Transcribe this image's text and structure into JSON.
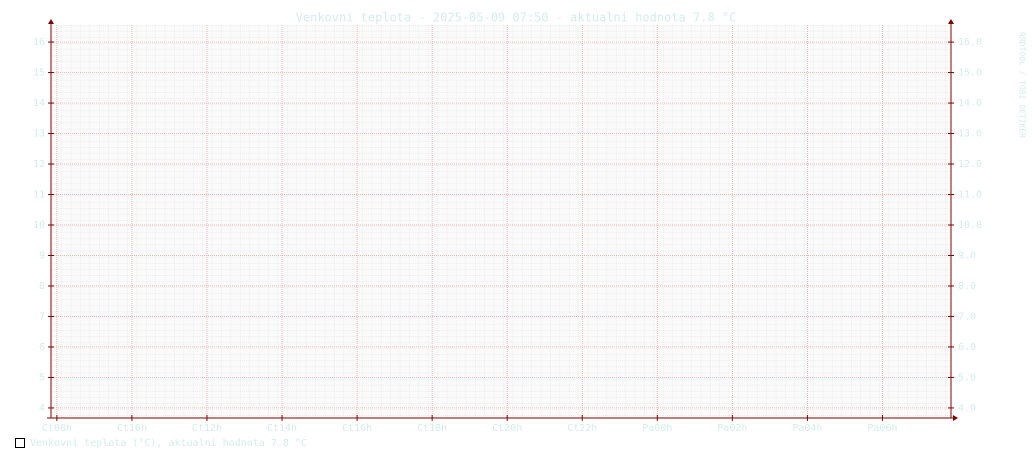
{
  "chart_data": {
    "type": "line",
    "title": "Venkovni teplota - 2025-05-09 07:50 - aktualni hodnota 7.8 °C",
    "watermark": "RRDTOOL / TOBI OETIKER",
    "x": [],
    "series": [
      {
        "name": "Venkovni teplota (°C), aktualni hodnota 7.8 °C",
        "color": "#000000",
        "values": []
      }
    ],
    "xlim": [
      7.87,
      31.8
    ],
    "xticks": [
      {
        "value": 8,
        "label": "Ct08h"
      },
      {
        "value": 10,
        "label": "Ct10h"
      },
      {
        "value": 12,
        "label": "Ct12h"
      },
      {
        "value": 14,
        "label": "Ct14h"
      },
      {
        "value": 16,
        "label": "Ct16h"
      },
      {
        "value": 18,
        "label": "Ct18h"
      },
      {
        "value": 20,
        "label": "Ct20h"
      },
      {
        "value": 22,
        "label": "Ct22h"
      },
      {
        "value": 24,
        "label": "Pa00h"
      },
      {
        "value": 26,
        "label": "Pa02h"
      },
      {
        "value": 28,
        "label": "Pa04h"
      },
      {
        "value": 30,
        "label": "Pa06h"
      }
    ],
    "ylim": [
      3.67,
      16.56
    ],
    "yticks": [
      4,
      5,
      6,
      7,
      8,
      9,
      10,
      11,
      12,
      13,
      14,
      15,
      16
    ],
    "y2lim": [
      3.67,
      16.56
    ],
    "y2ticks": [
      {
        "value": 4,
        "label": "4.0"
      },
      {
        "value": 5,
        "label": "5.0"
      },
      {
        "value": 6,
        "label": "6.0"
      },
      {
        "value": 7,
        "label": "7.0"
      },
      {
        "value": 8,
        "label": "8.0"
      },
      {
        "value": 9,
        "label": "9.0"
      },
      {
        "value": 10,
        "label": "10.0"
      },
      {
        "value": 11,
        "label": "11.0"
      },
      {
        "value": 12,
        "label": "12.0"
      },
      {
        "value": 13,
        "label": "13.0"
      },
      {
        "value": 14,
        "label": "14.0"
      },
      {
        "value": 15,
        "label": "15.0"
      },
      {
        "value": 16,
        "label": "16.0"
      }
    ],
    "grid": true
  }
}
